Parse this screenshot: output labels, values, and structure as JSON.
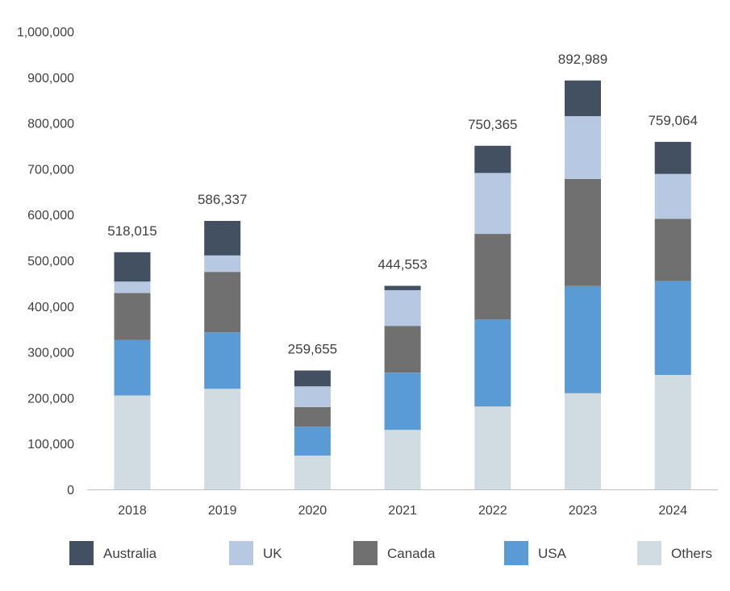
{
  "chart_data": {
    "type": "stacked-bar",
    "title": "",
    "xlabel": "",
    "ylabel": "",
    "ylim": [
      0,
      1000000
    ],
    "yticks": [
      0,
      100000,
      200000,
      300000,
      400000,
      500000,
      600000,
      700000,
      800000,
      900000,
      1000000
    ],
    "ytick_labels": [
      "0",
      "100,000",
      "200,000",
      "300,000",
      "400,000",
      "500,000",
      "600,000",
      "700,000",
      "800,000",
      "900,000",
      "1,000,000"
    ],
    "categories": [
      "2018",
      "2019",
      "2020",
      "2021",
      "2022",
      "2023",
      "2024"
    ],
    "totals": [
      "518,015",
      "586,337",
      "259,655",
      "444,553",
      "750,365",
      "892,989",
      "759,064"
    ],
    "series": [
      {
        "name": "Others",
        "color": "#d1dbe2",
        "values": [
          205000,
          220000,
          74000,
          130000,
          181000,
          210000,
          250000
        ]
      },
      {
        "name": "USA",
        "color": "#5b9bd5",
        "values": [
          121000,
          123000,
          63000,
          125000,
          190000,
          234000,
          205000
        ]
      },
      {
        "name": "Canada",
        "color": "#707070",
        "values": [
          103000,
          132000,
          43000,
          102000,
          187000,
          234000,
          136000
        ]
      },
      {
        "name": "UK",
        "color": "#b7c9e2",
        "values": [
          25000,
          36000,
          45000,
          78000,
          133000,
          137000,
          98000
        ]
      },
      {
        "name": "Australia",
        "color": "#435061",
        "values": [
          64015,
          75337,
          34655,
          9553,
          59365,
          77989,
          70064
        ]
      }
    ],
    "legend": [
      "Australia",
      "UK",
      "Canada",
      "USA",
      "Others"
    ],
    "legend_position": "bottom",
    "grid": false
  }
}
